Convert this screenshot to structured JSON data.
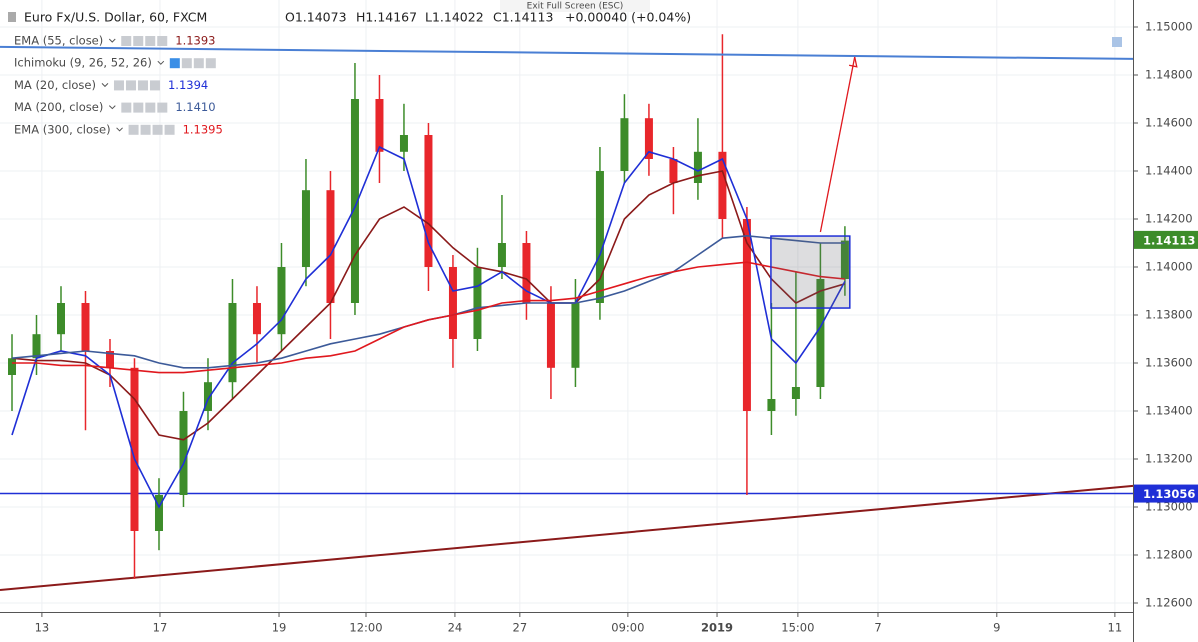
{
  "chart_data": {
    "type": "candlestick",
    "title": "Euro Fx/U.S. Dollar, 60, FXCM",
    "ohlc": {
      "open": {
        "value": 1.14073,
        "label": "O1.14073"
      },
      "high": {
        "value": 1.14167,
        "label": "H1.14167"
      },
      "low": {
        "value": 1.14022,
        "label": "L1.14022"
      },
      "close": {
        "value": 1.14113,
        "label": "C1.14113"
      },
      "change": "+0.00040 (+0.04%)"
    },
    "notice": "Exit Full Screen (ESC)",
    "up_color": "#3d8c2a",
    "down_color": "#e8262b",
    "x": [
      0,
      1,
      2,
      3,
      4,
      5,
      6,
      7,
      8,
      9,
      10,
      11,
      12,
      13,
      14,
      15,
      16,
      17,
      18,
      19,
      20,
      21,
      22,
      23,
      24,
      25,
      26,
      27,
      28,
      29,
      30,
      31,
      32,
      33,
      34
    ],
    "candles": [
      [
        1.1355,
        1.1372,
        1.134,
        1.1362
      ],
      [
        1.1362,
        1.138,
        1.1355,
        1.1372
      ],
      [
        1.1372,
        1.1392,
        1.1365,
        1.1385
      ],
      [
        1.1385,
        1.139,
        1.1332,
        1.1365
      ],
      [
        1.1365,
        1.137,
        1.135,
        1.1358
      ],
      [
        1.1358,
        1.1362,
        1.127,
        1.129
      ],
      [
        1.129,
        1.1312,
        1.1282,
        1.1305
      ],
      [
        1.1305,
        1.1348,
        1.13,
        1.134
      ],
      [
        1.134,
        1.1362,
        1.1332,
        1.1352
      ],
      [
        1.1352,
        1.1395,
        1.1345,
        1.1385
      ],
      [
        1.1385,
        1.1392,
        1.136,
        1.1372
      ],
      [
        1.1372,
        1.141,
        1.1365,
        1.14
      ],
      [
        1.14,
        1.1445,
        1.1392,
        1.1432
      ],
      [
        1.1432,
        1.144,
        1.137,
        1.1385
      ],
      [
        1.1385,
        1.1485,
        1.138,
        1.147
      ],
      [
        1.147,
        1.148,
        1.1435,
        1.1448
      ],
      [
        1.1448,
        1.1468,
        1.144,
        1.1455
      ],
      [
        1.1455,
        1.146,
        1.139,
        1.14
      ],
      [
        1.14,
        1.1405,
        1.1358,
        1.137
      ],
      [
        1.137,
        1.1408,
        1.1365,
        1.14
      ],
      [
        1.14,
        1.143,
        1.1395,
        1.141
      ],
      [
        1.141,
        1.1415,
        1.1378,
        1.1385
      ],
      [
        1.1385,
        1.1392,
        1.1345,
        1.1358
      ],
      [
        1.1358,
        1.1395,
        1.135,
        1.1385
      ],
      [
        1.1385,
        1.145,
        1.1378,
        1.144
      ],
      [
        1.144,
        1.1472,
        1.1435,
        1.1462
      ],
      [
        1.1462,
        1.1468,
        1.1438,
        1.1445
      ],
      [
        1.1445,
        1.145,
        1.1422,
        1.1435
      ],
      [
        1.1435,
        1.1462,
        1.1428,
        1.1448
      ],
      [
        1.1448,
        1.1497,
        1.1412,
        1.142
      ],
      [
        1.142,
        1.1425,
        1.1305,
        1.134
      ],
      [
        1.134,
        1.1385,
        1.133,
        1.1345
      ],
      [
        1.1345,
        1.1398,
        1.1338,
        1.135
      ],
      [
        1.135,
        1.141,
        1.1345,
        1.1395
      ],
      [
        1.1395,
        1.1417,
        1.1388,
        1.1411
      ]
    ],
    "series": [
      {
        "name": "EMA (55, close)",
        "value_label": "1.1393",
        "color": "#8b1a1a",
        "values": [
          1.1362,
          1.1361,
          1.1361,
          1.136,
          1.1355,
          1.1345,
          1.133,
          1.1328,
          1.1335,
          1.1345,
          1.1355,
          1.1365,
          1.1375,
          1.1385,
          1.1405,
          1.142,
          1.1425,
          1.1418,
          1.1408,
          1.14,
          1.1398,
          1.1395,
          1.1385,
          1.1385,
          1.1395,
          1.142,
          1.143,
          1.1435,
          1.1438,
          1.144,
          1.141,
          1.1395,
          1.1385,
          1.139,
          1.1393
        ]
      },
      {
        "name": "MA (20, close)",
        "value_label": "1.1394",
        "color": "#1f2fd6",
        "values": [
          1.133,
          1.1362,
          1.1365,
          1.1363,
          1.1355,
          1.132,
          1.13,
          1.1318,
          1.1345,
          1.136,
          1.1368,
          1.1378,
          1.1395,
          1.1405,
          1.1425,
          1.145,
          1.1445,
          1.141,
          1.139,
          1.1392,
          1.1398,
          1.139,
          1.1385,
          1.1385,
          1.1405,
          1.1435,
          1.1448,
          1.1445,
          1.144,
          1.1445,
          1.142,
          1.137,
          1.136,
          1.1375,
          1.1394
        ]
      },
      {
        "name": "MA (200, close)",
        "value_label": "1.1410",
        "color": "#3c5a99",
        "values": [
          1.1362,
          1.1363,
          1.1364,
          1.1365,
          1.1364,
          1.1363,
          1.136,
          1.1358,
          1.1358,
          1.1359,
          1.136,
          1.1362,
          1.1365,
          1.1368,
          1.137,
          1.1372,
          1.1375,
          1.1378,
          1.138,
          1.1383,
          1.1384,
          1.1385,
          1.1385,
          1.1385,
          1.1387,
          1.139,
          1.1394,
          1.1398,
          1.1405,
          1.1412,
          1.1413,
          1.1412,
          1.1411,
          1.141,
          1.141
        ]
      },
      {
        "name": "EMA (300, close)",
        "value_label": "1.1395",
        "color": "#e0181e",
        "values": [
          1.136,
          1.136,
          1.1359,
          1.1359,
          1.1358,
          1.1357,
          1.1356,
          1.1356,
          1.1357,
          1.1358,
          1.1359,
          1.136,
          1.1362,
          1.1363,
          1.1365,
          1.137,
          1.1375,
          1.1378,
          1.138,
          1.1382,
          1.1385,
          1.1386,
          1.1386,
          1.1387,
          1.139,
          1.1393,
          1.1396,
          1.1398,
          1.14,
          1.1401,
          1.1402,
          1.14,
          1.1398,
          1.1396,
          1.1395
        ]
      }
    ],
    "study": {
      "name": "Ichimoku (9, 26, 52, 26)"
    },
    "last_price": {
      "value": 1.14113,
      "label": "1.14113",
      "color": "#3d8c2a"
    },
    "level": {
      "value": 1.13056,
      "label": "1.13056",
      "color": "#1f2fd6"
    },
    "resistance": {
      "color": "#4a7fd4",
      "points": [
        [
          -0.49,
          1.14917
        ],
        [
          45.76,
          1.14867
        ]
      ]
    },
    "support": {
      "color": "#8b1a1a",
      "points": [
        [
          -0.49,
          1.12654
        ],
        [
          45.76,
          1.13088
        ]
      ]
    },
    "box": {
      "color": "#1f2fd6",
      "x": [
        30.98,
        34.2
      ],
      "y": [
        1.13829,
        1.14129
      ]
    },
    "arrow": {
      "color": "#e0181e",
      "points": [
        [
          33.0,
          1.14146
        ],
        [
          34.4,
          1.14875
        ]
      ]
    },
    "xlim": [
      -0.49,
      45.76
    ],
    "ylim": [
      1.125625,
      1.151125
    ],
    "xticks": [
      {
        "value": 1.22,
        "label": "13"
      },
      {
        "value": 6.04,
        "label": "17"
      },
      {
        "value": 10.9,
        "label": "19"
      },
      {
        "value": 14.45,
        "label": "12:00"
      },
      {
        "value": 18.08,
        "label": "24"
      },
      {
        "value": 20.73,
        "label": "27"
      },
      {
        "value": 25.14,
        "label": "09:00"
      },
      {
        "value": 28.78,
        "label": "2019"
      },
      {
        "value": 32.08,
        "label": "15:00"
      },
      {
        "value": 35.35,
        "label": "7"
      },
      {
        "value": 40.2,
        "label": "9"
      },
      {
        "value": 45.02,
        "label": "11"
      }
    ],
    "yticks": [
      {
        "value": 1.15,
        "label": "1.15000"
      },
      {
        "value": 1.148,
        "label": "1.14800"
      },
      {
        "value": 1.146,
        "label": "1.14600"
      },
      {
        "value": 1.144,
        "label": "1.14400"
      },
      {
        "value": 1.142,
        "label": "1.14200"
      },
      {
        "value": 1.14,
        "label": "1.14000"
      },
      {
        "value": 1.138,
        "label": "1.13800"
      },
      {
        "value": 1.136,
        "label": "1.13600"
      },
      {
        "value": 1.134,
        "label": "1.13400"
      },
      {
        "value": 1.132,
        "label": "1.13200"
      },
      {
        "value": 1.13,
        "label": "1.13000"
      },
      {
        "value": 1.128,
        "label": "1.12800"
      },
      {
        "value": 1.126,
        "label": "1.12600"
      }
    ],
    "grid": true
  }
}
